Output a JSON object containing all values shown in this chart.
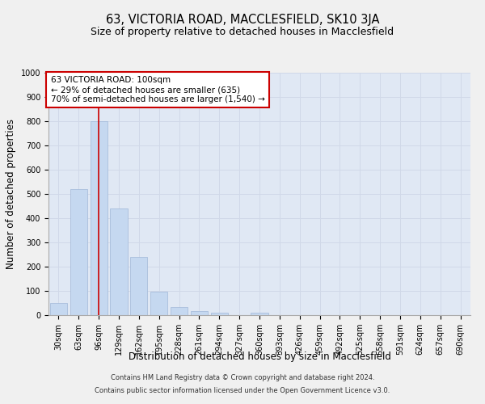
{
  "title": "63, VICTORIA ROAD, MACCLESFIELD, SK10 3JA",
  "subtitle": "Size of property relative to detached houses in Macclesfield",
  "xlabel": "Distribution of detached houses by size in Macclesfield",
  "ylabel": "Number of detached properties",
  "footer_line1": "Contains HM Land Registry data © Crown copyright and database right 2024.",
  "footer_line2": "Contains public sector information licensed under the Open Government Licence v3.0.",
  "bin_labels": [
    "30sqm",
    "63sqm",
    "96sqm",
    "129sqm",
    "162sqm",
    "195sqm",
    "228sqm",
    "261sqm",
    "294sqm",
    "327sqm",
    "360sqm",
    "393sqm",
    "426sqm",
    "459sqm",
    "492sqm",
    "525sqm",
    "558sqm",
    "591sqm",
    "624sqm",
    "657sqm",
    "690sqm"
  ],
  "bar_values": [
    50,
    520,
    800,
    440,
    240,
    97,
    33,
    17,
    10,
    0,
    10,
    0,
    0,
    0,
    0,
    0,
    0,
    0,
    0,
    0,
    0
  ],
  "bar_color": "#c5d8f0",
  "bar_edge_color": "#a0b8d8",
  "annotation_line1": "63 VICTORIA ROAD: 100sqm",
  "annotation_line2": "← 29% of detached houses are smaller (635)",
  "annotation_line3": "70% of semi-detached houses are larger (1,540) →",
  "annotation_box_color": "#ffffff",
  "annotation_box_edge_color": "#cc0000",
  "vline_color": "#cc0000",
  "vline_x": 2.0,
  "ylim": [
    0,
    1000
  ],
  "yticks": [
    0,
    100,
    200,
    300,
    400,
    500,
    600,
    700,
    800,
    900,
    1000
  ],
  "grid_color": "#d0d8e8",
  "background_color": "#e0e8f4",
  "bar_width": 0.85,
  "title_fontsize": 10.5,
  "subtitle_fontsize": 9,
  "axis_label_fontsize": 8.5,
  "tick_fontsize": 7,
  "annotation_fontsize": 7.5,
  "footer_fontsize": 6
}
